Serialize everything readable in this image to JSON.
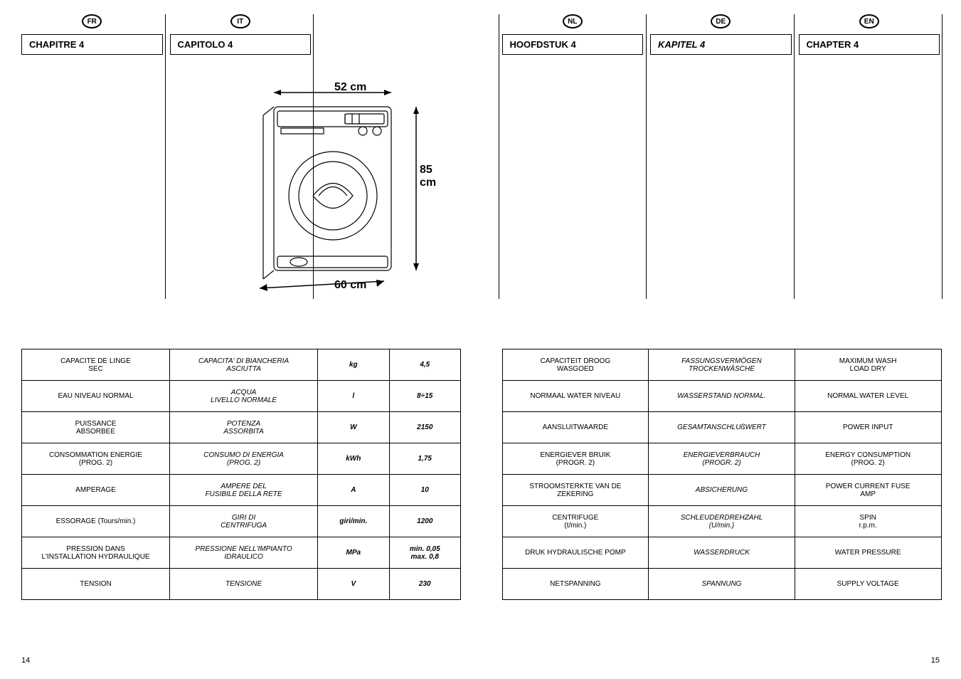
{
  "left_page": {
    "langs": [
      {
        "badge": "FR",
        "chapter": "CHAPITRE 4",
        "italic": false
      },
      {
        "badge": "IT",
        "chapter": "CAPITOLO 4",
        "italic": false
      }
    ],
    "page_number": "14",
    "dimensions": {
      "width": "52 cm",
      "height": "85 cm",
      "depth": "60 cm"
    },
    "table_rows": [
      {
        "fr": "CAPACITE DE LINGE\nSEC",
        "it": "CAPACITA' DI BIANCHERIA\nASCIUTTA",
        "unit": "kg",
        "val": "4,5"
      },
      {
        "fr": "EAU NIVEAU NORMAL",
        "it": "ACQUA\nLIVELLO NORMALE",
        "unit": "l",
        "val": "8÷15"
      },
      {
        "fr": "PUISSANCE\nABSORBEE",
        "it": "POTENZA\nASSORBITA",
        "unit": "W",
        "val": "2150"
      },
      {
        "fr": "CONSOMMATION ENERGIE\n(PROG. 2)",
        "it": "CONSUMO DI ENERGIA\n(PROG. 2)",
        "unit": "kWh",
        "val": "1,75"
      },
      {
        "fr": "AMPERAGE",
        "it": "AMPERE DEL\nFUSIBILE DELLA RETE",
        "unit": "A",
        "val": "10"
      },
      {
        "fr": "ESSORAGE (Tours/min.)",
        "it": "GIRI DI\nCENTRIFUGA",
        "unit": "giri/min.",
        "val": "1200"
      },
      {
        "fr": "PRESSION DANS\nL'INSTALLATION HYDRAULIQUE",
        "it": "PRESSIONE NELL'IMPIANTO\nIDRAULICO",
        "unit": "MPa",
        "val": "min. 0,05\nmax. 0,8"
      },
      {
        "fr": "TENSION",
        "it": "TENSIONE",
        "unit": "V",
        "val": "230"
      }
    ]
  },
  "right_page": {
    "langs": [
      {
        "badge": "NL",
        "chapter": "HOOFDSTUK 4",
        "italic": false
      },
      {
        "badge": "DE",
        "chapter": "KAPITEL 4",
        "italic": true
      },
      {
        "badge": "EN",
        "chapter": "CHAPTER 4",
        "italic": false
      }
    ],
    "page_number": "15",
    "table_rows": [
      {
        "nl": "CAPACITEIT DROOG\nWASGOED",
        "de": "FASSUNGSVERMÖGEN\nTROCKENWÄSCHE",
        "en": "MAXIMUM WASH\nLOAD DRY"
      },
      {
        "nl": "NORMAAL WATER NIVEAU",
        "de": "WASSERSTAND NORMAL.",
        "en": "NORMAL WATER LEVEL"
      },
      {
        "nl": "AANSLUITWAARDE",
        "de": "GESAMTANSCHLUßWERT",
        "en": "POWER INPUT"
      },
      {
        "nl": "ENERGIEVER BRUIK\n(PROGR. 2)",
        "de": "ENERGIEVERBRAUCH\n(PROGR. 2)",
        "en": "ENERGY CONSUMPTION\n(PROG. 2)"
      },
      {
        "nl": "STROOMSTERKTE VAN DE\nZEKERING",
        "de": "ABSICHERUNG",
        "en": "POWER CURRENT FUSE\nAMP"
      },
      {
        "nl": "CENTRIFUGE\n(t/min.)",
        "de": "SCHLEUDERDREHZAHL\n(U/min.)",
        "en": "SPIN\nr.p.m."
      },
      {
        "nl": "DRUK HYDRAULISCHE POMP",
        "de": "WASSERDRUCK",
        "en": "WATER PRESSURE"
      },
      {
        "nl": "NETSPANNING",
        "de": "SPANNUNG",
        "en": "SUPPLY VOLTAGE"
      }
    ]
  }
}
